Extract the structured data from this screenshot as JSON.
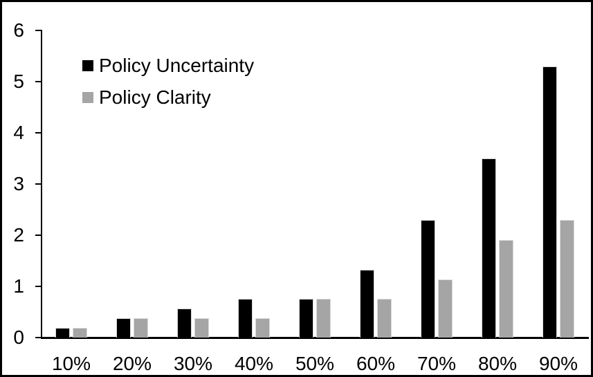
{
  "chart_data": {
    "type": "bar",
    "title": "",
    "xlabel": "",
    "ylabel": "",
    "categories": [
      "10%",
      "20%",
      "30%",
      "40%",
      "50%",
      "60%",
      "70%",
      "80%",
      "90%"
    ],
    "series": [
      {
        "name": "Policy Uncertainty",
        "color": "#000000",
        "values": [
          0.19,
          0.38,
          0.57,
          0.76,
          0.76,
          1.33,
          2.3,
          3.5,
          5.3
        ]
      },
      {
        "name": "Policy Clarity",
        "color": "#a5a5a5",
        "values": [
          0.19,
          0.38,
          0.38,
          0.38,
          0.76,
          0.76,
          1.14,
          1.9,
          2.3
        ]
      }
    ],
    "ylim": [
      0,
      6
    ],
    "yticks": [
      0,
      1,
      2,
      3,
      4,
      5,
      6
    ],
    "grid": false,
    "legend_position": "top-left-inside",
    "frame_border_color": "#000000",
    "axis_color": "#000000"
  }
}
